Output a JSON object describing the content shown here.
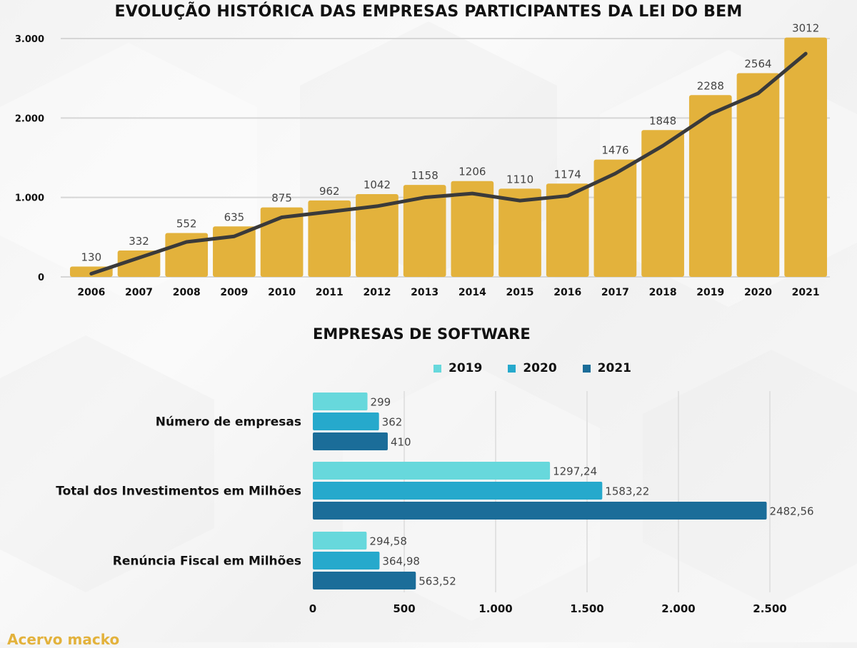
{
  "colors": {
    "bar_gold": "#e3b23c",
    "trend_line": "#3a3a3a",
    "series_2019": "#67d8dc",
    "series_2020": "#26a9cc",
    "series_2021": "#1b6d99",
    "label_text": "#444444",
    "axis_text": "#111111",
    "brand": "#e3b23c"
  },
  "footer": {
    "brand": "Acervo macko"
  },
  "chart_data": [
    {
      "type": "bar",
      "title": "EVOLUÇÃO HISTÓRICA DAS EMPRESAS PARTICIPANTES DA LEI DO BEM",
      "xlabel": "",
      "ylabel": "",
      "categories": [
        "2006",
        "2007",
        "2008",
        "2009",
        "2010",
        "2011",
        "2012",
        "2013",
        "2014",
        "2015",
        "2016",
        "2017",
        "2018",
        "2019",
        "2020",
        "2021"
      ],
      "values": [
        130,
        332,
        552,
        635,
        875,
        962,
        1042,
        1158,
        1206,
        1110,
        1174,
        1476,
        1848,
        2288,
        2564,
        3012
      ],
      "trend_line": [
        40,
        240,
        440,
        510,
        750,
        820,
        890,
        1000,
        1050,
        960,
        1020,
        1300,
        1650,
        2050,
        2310,
        2810
      ],
      "ylim": [
        0,
        3000
      ],
      "yticks": [
        0,
        1000,
        2000,
        3000
      ],
      "ytick_labels": [
        "0",
        "1.000",
        "2.000",
        "3.000"
      ],
      "grid": true,
      "legend": "none"
    },
    {
      "type": "bar",
      "orientation": "horizontal",
      "title": "EMPRESAS DE SOFTWARE",
      "categories": [
        "Número de empresas",
        "Total dos Investimentos em Milhões",
        "Renúncia Fiscal em Milhões"
      ],
      "series": [
        {
          "name": "2019",
          "values": [
            299,
            1297.24,
            294.58
          ],
          "labels": [
            "299",
            "1297,24",
            "294,58"
          ]
        },
        {
          "name": "2020",
          "values": [
            362,
            1583.22,
            364.98
          ],
          "labels": [
            "362",
            "1583,22",
            "364,98"
          ]
        },
        {
          "name": "2021",
          "values": [
            410,
            2482.56,
            563.52
          ],
          "labels": [
            "410",
            "2482,56",
            "563,52"
          ]
        }
      ],
      "xlim": [
        0,
        2500
      ],
      "xticks": [
        0,
        500,
        1000,
        1500,
        2000,
        2500
      ],
      "xtick_labels": [
        "0",
        "500",
        "1.000",
        "1.500",
        "2.000",
        "2.500"
      ],
      "grid": true,
      "legend": "top"
    }
  ]
}
